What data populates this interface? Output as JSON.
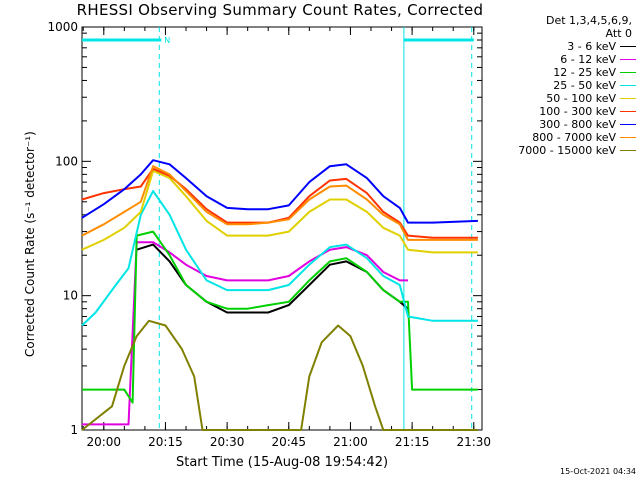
{
  "title": "RHESSI Observing Summary Count Rates, Corrected",
  "timestamp": "15-Oct-2021 04:34",
  "legend_header": [
    "Det 1,3,4,5,6,9,",
    "Att 0"
  ],
  "chart_data": {
    "type": "line",
    "title": "RHESSI Observing Summary Count Rates, Corrected",
    "xlabel": "Start Time (15-Aug-08 19:54:42)",
    "ylabel": "Corrected Count Rate (s⁻¹ detector⁻¹)",
    "yscale": "log",
    "ylim": [
      1,
      1000
    ],
    "xlim": [
      "19:54:42",
      "21:32:00"
    ],
    "ytick_labels": [
      "1",
      "10",
      "100",
      "1000"
    ],
    "xtick_labels": [
      "20:00",
      "20:15",
      "20:30",
      "20:45",
      "21:00",
      "21:15",
      "21:30"
    ],
    "grid": false,
    "legend_position": "outside-right",
    "markers": [
      {
        "type": "dashed-vertical",
        "x": "20:13:30",
        "label": "N",
        "color": "#00e5e5"
      },
      {
        "type": "dashed-vertical",
        "x": "21:29:30",
        "label": "",
        "color": "#00e5e5"
      },
      {
        "type": "solid-vertical",
        "x": "21:13:00",
        "label": "",
        "color": "#00e5e5"
      }
    ],
    "night_bars": [
      {
        "start": "19:54:42",
        "end": "20:14:00",
        "y": 800
      },
      {
        "start": "21:13:00",
        "end": "21:30:00",
        "y": 800
      }
    ],
    "series": [
      {
        "name": "3 - 6 keV",
        "color": "#000000",
        "points": [
          [
            "20:08",
            22
          ],
          [
            "20:12",
            24
          ],
          [
            "20:16",
            18
          ],
          [
            "20:20",
            12
          ],
          [
            "20:25",
            9
          ],
          [
            "20:30",
            7.5
          ],
          [
            "20:35",
            7.5
          ],
          [
            "20:40",
            7.5
          ],
          [
            "20:45",
            8.5
          ],
          [
            "20:50",
            12
          ],
          [
            "20:55",
            17
          ],
          [
            "20:59",
            18
          ],
          [
            "21:04",
            15
          ],
          [
            "21:08",
            11
          ],
          [
            "21:12",
            9
          ],
          [
            "21:14",
            8
          ]
        ]
      },
      {
        "name": "6 - 12 keV",
        "color": "#e000e0",
        "points": [
          [
            "19:54:42",
            1.1
          ],
          [
            "20:06",
            1.1
          ],
          [
            "20:08",
            25
          ],
          [
            "20:12",
            25
          ],
          [
            "20:16",
            21
          ],
          [
            "20:20",
            17
          ],
          [
            "20:25",
            14
          ],
          [
            "20:30",
            13
          ],
          [
            "20:35",
            13
          ],
          [
            "20:40",
            13
          ],
          [
            "20:45",
            14
          ],
          [
            "20:50",
            18
          ],
          [
            "20:55",
            22
          ],
          [
            "20:59",
            23
          ],
          [
            "21:04",
            20
          ],
          [
            "21:08",
            15
          ],
          [
            "21:12",
            13
          ],
          [
            "21:14",
            13
          ]
        ]
      },
      {
        "name": "12 - 25 keV",
        "color": "#00d000",
        "points": [
          [
            "19:54:42",
            2
          ],
          [
            "20:05",
            2
          ],
          [
            "20:07",
            1.6
          ],
          [
            "20:08",
            28
          ],
          [
            "20:12",
            30
          ],
          [
            "20:16",
            20
          ],
          [
            "20:20",
            12
          ],
          [
            "20:25",
            9
          ],
          [
            "20:30",
            8
          ],
          [
            "20:35",
            8
          ],
          [
            "20:40",
            8.5
          ],
          [
            "20:45",
            9
          ],
          [
            "20:50",
            13
          ],
          [
            "20:55",
            18
          ],
          [
            "20:59",
            19
          ],
          [
            "21:04",
            15
          ],
          [
            "21:08",
            11
          ],
          [
            "21:12",
            9
          ],
          [
            "21:14",
            9
          ],
          [
            "21:15",
            2
          ],
          [
            "21:31",
            2
          ]
        ]
      },
      {
        "name": "25 - 50 keV",
        "color": "#00e5e5",
        "points": [
          [
            "19:54:42",
            6
          ],
          [
            "19:58",
            7.5
          ],
          [
            "20:02",
            11
          ],
          [
            "20:06",
            16
          ],
          [
            "20:09",
            40
          ],
          [
            "20:12",
            60
          ],
          [
            "20:16",
            40
          ],
          [
            "20:20",
            22
          ],
          [
            "20:25",
            13
          ],
          [
            "20:30",
            11
          ],
          [
            "20:35",
            11
          ],
          [
            "20:40",
            11
          ],
          [
            "20:45",
            12
          ],
          [
            "20:50",
            17
          ],
          [
            "20:55",
            23
          ],
          [
            "20:59",
            24
          ],
          [
            "21:04",
            19
          ],
          [
            "21:08",
            14
          ],
          [
            "21:12",
            12
          ],
          [
            "21:14",
            7
          ],
          [
            "21:20",
            6.5
          ],
          [
            "21:31",
            6.5
          ]
        ]
      },
      {
        "name": "50 - 100 keV",
        "color": "#e0d000",
        "points": [
          [
            "19:54:42",
            22
          ],
          [
            "20:00",
            26
          ],
          [
            "20:05",
            32
          ],
          [
            "20:09",
            42
          ],
          [
            "20:12",
            85
          ],
          [
            "20:16",
            75
          ],
          [
            "20:20",
            55
          ],
          [
            "20:25",
            36
          ],
          [
            "20:30",
            28
          ],
          [
            "20:35",
            28
          ],
          [
            "20:40",
            28
          ],
          [
            "20:45",
            30
          ],
          [
            "20:50",
            42
          ],
          [
            "20:55",
            52
          ],
          [
            "20:59",
            52
          ],
          [
            "21:04",
            42
          ],
          [
            "21:08",
            32
          ],
          [
            "21:12",
            28
          ],
          [
            "21:14",
            22
          ],
          [
            "21:20",
            21
          ],
          [
            "21:31",
            21
          ]
        ]
      },
      {
        "name": "100 - 300 keV",
        "color": "#ff3300",
        "points": [
          [
            "19:54:42",
            52
          ],
          [
            "20:00",
            58
          ],
          [
            "20:05",
            62
          ],
          [
            "20:09",
            65
          ],
          [
            "20:12",
            88
          ],
          [
            "20:16",
            78
          ],
          [
            "20:20",
            62
          ],
          [
            "20:25",
            44
          ],
          [
            "20:30",
            35
          ],
          [
            "20:35",
            35
          ],
          [
            "20:40",
            35
          ],
          [
            "20:45",
            38
          ],
          [
            "20:50",
            55
          ],
          [
            "20:55",
            72
          ],
          [
            "20:59",
            74
          ],
          [
            "21:04",
            58
          ],
          [
            "21:08",
            42
          ],
          [
            "21:12",
            35
          ],
          [
            "21:14",
            28
          ],
          [
            "21:20",
            27
          ],
          [
            "21:31",
            27
          ]
        ]
      },
      {
        "name": "300 - 800 keV",
        "color": "#0000ff",
        "points": [
          [
            "19:54:42",
            38
          ],
          [
            "20:00",
            48
          ],
          [
            "20:05",
            62
          ],
          [
            "20:09",
            80
          ],
          [
            "20:12",
            102
          ],
          [
            "20:16",
            95
          ],
          [
            "20:20",
            75
          ],
          [
            "20:25",
            55
          ],
          [
            "20:30",
            45
          ],
          [
            "20:35",
            44
          ],
          [
            "20:40",
            44
          ],
          [
            "20:45",
            47
          ],
          [
            "20:50",
            70
          ],
          [
            "20:55",
            92
          ],
          [
            "20:59",
            95
          ],
          [
            "21:04",
            75
          ],
          [
            "21:08",
            55
          ],
          [
            "21:12",
            45
          ],
          [
            "21:14",
            35
          ],
          [
            "21:20",
            35
          ],
          [
            "21:31",
            36
          ]
        ]
      },
      {
        "name": "800 - 7000 keV",
        "color": "#ff8c00",
        "points": [
          [
            "19:54:42",
            28
          ],
          [
            "20:00",
            34
          ],
          [
            "20:05",
            42
          ],
          [
            "20:09",
            50
          ],
          [
            "20:12",
            92
          ],
          [
            "20:16",
            80
          ],
          [
            "20:20",
            60
          ],
          [
            "20:25",
            42
          ],
          [
            "20:30",
            34
          ],
          [
            "20:35",
            34
          ],
          [
            "20:40",
            35
          ],
          [
            "20:45",
            37
          ],
          [
            "20:50",
            52
          ],
          [
            "20:55",
            65
          ],
          [
            "20:59",
            66
          ],
          [
            "21:04",
            52
          ],
          [
            "21:08",
            40
          ],
          [
            "21:12",
            34
          ],
          [
            "21:14",
            26
          ],
          [
            "21:20",
            26
          ],
          [
            "21:31",
            26
          ]
        ]
      },
      {
        "name": "7000 - 15000 keV",
        "color": "#808000",
        "points": [
          [
            "19:54:42",
            1
          ],
          [
            "20:02",
            1.5
          ],
          [
            "20:05",
            3
          ],
          [
            "20:08",
            5
          ],
          [
            "20:11",
            6.5
          ],
          [
            "20:15",
            6
          ],
          [
            "20:19",
            4
          ],
          [
            "20:22",
            2.5
          ],
          [
            "20:24",
            1
          ],
          [
            "20:48",
            1
          ],
          [
            "20:50",
            2.5
          ],
          [
            "20:53",
            4.5
          ],
          [
            "20:57",
            6
          ],
          [
            "21:00",
            5
          ],
          [
            "21:03",
            3
          ],
          [
            "21:06",
            1.5
          ],
          [
            "21:08",
            1
          ],
          [
            "21:31",
            1
          ]
        ]
      }
    ]
  }
}
